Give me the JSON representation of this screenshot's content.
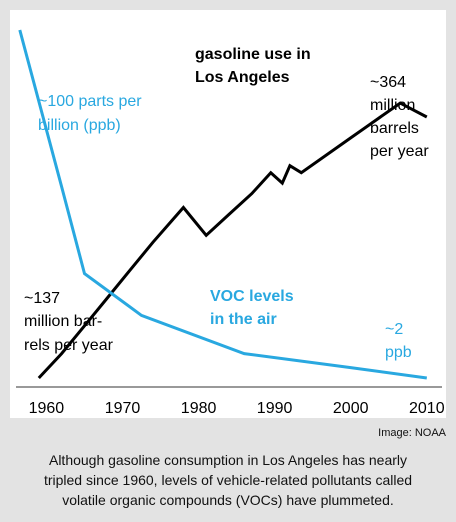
{
  "chart_data": {
    "type": "line",
    "x_ticks": [
      "1960",
      "1970",
      "1980",
      "1990",
      "2000",
      "2010"
    ],
    "xlim": [
      1956,
      2012
    ],
    "series": [
      {
        "name": "gasoline use",
        "color": "#000000",
        "x": [
          1959,
          1962,
          1965,
          1968,
          1971,
          1974,
          1978,
          1981,
          1984,
          1987,
          1989.5,
          1991,
          1992,
          1993.5,
          2000,
          2006.5,
          2010
        ],
        "y": [
          0.0,
          0.07,
          0.15,
          0.23,
          0.31,
          0.39,
          0.49,
          0.41,
          0.47,
          0.53,
          0.59,
          0.56,
          0.61,
          0.59,
          0.69,
          0.79,
          0.75
        ]
      },
      {
        "name": "VOC levels",
        "color": "#29a8e0",
        "x": [
          1956.5,
          1962,
          1965,
          1972.5,
          1986,
          2000,
          2010
        ],
        "y": [
          1.0,
          0.55,
          0.3,
          0.18,
          0.07,
          0.03,
          0.0
        ]
      }
    ],
    "annotations": {
      "gas_title_1": "gasoline use in",
      "gas_title_2": "Los Angeles",
      "gas_end_1": "~364",
      "gas_end_2": "million",
      "gas_end_3": "barrels",
      "gas_end_4": "per year",
      "gas_start_1": "~137",
      "gas_start_2": "million bar-",
      "gas_start_3": "rels per year",
      "voc_start_1": "~100 parts per",
      "voc_start_2": "billion (ppb)",
      "voc_title_1": "VOC levels",
      "voc_title_2": "in the air",
      "voc_end_1": "~2",
      "voc_end_2": "ppb"
    }
  },
  "credit": "Image: NOAA",
  "caption": {
    "line1": "Although gasoline consumption in Los Angeles has nearly",
    "line2": "tripled since 1960, levels of vehicle-related pollutants called",
    "line3": "volatile organic compounds (VOCs) have plummeted."
  }
}
